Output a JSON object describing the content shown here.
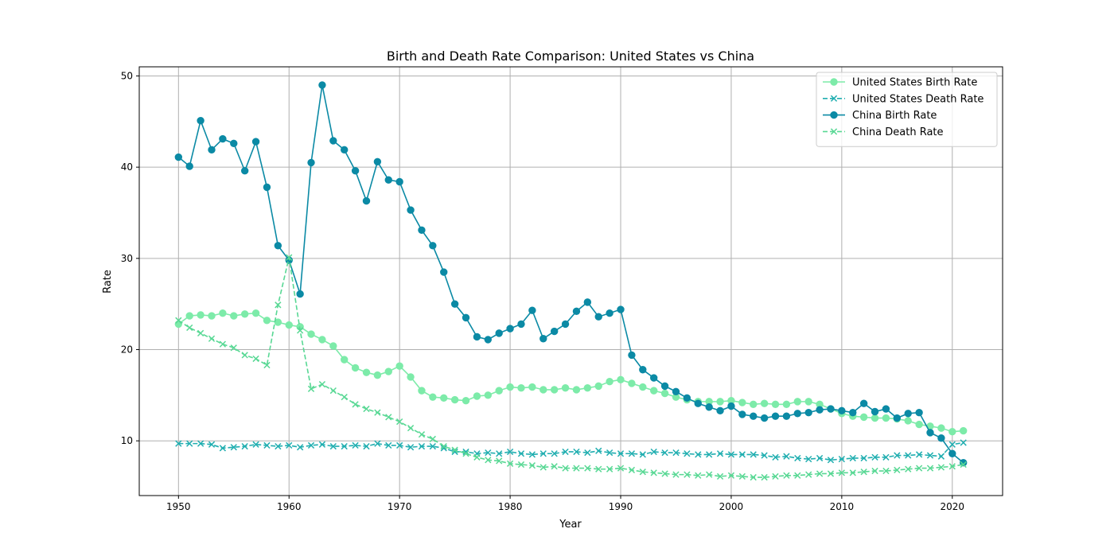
{
  "chart_data": {
    "type": "line",
    "title": "Birth and Death Rate Comparison: United States vs China",
    "xlabel": "Year",
    "ylabel": "Rate",
    "xlim": [
      1946.45,
      1824.55
    ],
    "ylim": [
      4.0,
      51.0
    ],
    "xticks": [
      1950,
      1960,
      1970,
      1980,
      1990,
      2000,
      2010,
      2020
    ],
    "yticks": [
      10,
      20,
      30,
      40,
      50
    ],
    "grid": true,
    "legend_position": "top-right",
    "x": [
      1950,
      1951,
      1952,
      1953,
      1954,
      1955,
      1956,
      1957,
      1958,
      1959,
      1960,
      1961,
      1962,
      1963,
      1964,
      1965,
      1966,
      1967,
      1968,
      1969,
      1970,
      1971,
      1972,
      1973,
      1974,
      1975,
      1976,
      1977,
      1978,
      1979,
      1980,
      1981,
      1982,
      1983,
      1984,
      1985,
      1986,
      1987,
      1988,
      1989,
      1990,
      1991,
      1992,
      1993,
      1994,
      1995,
      1996,
      1997,
      1998,
      1999,
      2000,
      2001,
      2002,
      2003,
      2004,
      2005,
      2006,
      2007,
      2008,
      2009,
      2010,
      2011,
      2012,
      2013,
      2014,
      2015,
      2016,
      2017,
      2018,
      2019,
      2020,
      2021
    ],
    "series": [
      {
        "name": "United States Birth Rate",
        "color": "#7deba9",
        "linestyle": "solid",
        "marker": "circle",
        "values": [
          22.8,
          23.7,
          23.8,
          23.7,
          24.0,
          23.7,
          23.9,
          24.0,
          23.2,
          23.0,
          22.7,
          22.5,
          21.7,
          21.1,
          20.4,
          18.9,
          18.0,
          17.5,
          17.2,
          17.6,
          18.2,
          17.0,
          15.5,
          14.8,
          14.7,
          14.5,
          14.4,
          14.9,
          15.0,
          15.5,
          15.9,
          15.8,
          15.9,
          15.6,
          15.6,
          15.8,
          15.6,
          15.8,
          16.0,
          16.5,
          16.7,
          16.3,
          15.9,
          15.5,
          15.2,
          14.8,
          14.5,
          14.3,
          14.3,
          14.3,
          14.4,
          14.2,
          14.0,
          14.1,
          14.0,
          14.0,
          14.3,
          14.3,
          14.0,
          13.5,
          13.0,
          12.7,
          12.6,
          12.5,
          12.5,
          12.4,
          12.2,
          11.8,
          11.6,
          11.4,
          11.0,
          11.1
        ]
      },
      {
        "name": "United States Death Rate",
        "color": "#20aeb0",
        "linestyle": "dashed",
        "marker": "x",
        "values": [
          9.7,
          9.7,
          9.7,
          9.6,
          9.2,
          9.3,
          9.4,
          9.6,
          9.5,
          9.4,
          9.5,
          9.3,
          9.5,
          9.6,
          9.4,
          9.4,
          9.5,
          9.4,
          9.7,
          9.5,
          9.5,
          9.3,
          9.4,
          9.4,
          9.2,
          8.8,
          8.8,
          8.6,
          8.7,
          8.6,
          8.8,
          8.6,
          8.5,
          8.6,
          8.6,
          8.8,
          8.8,
          8.7,
          8.9,
          8.7,
          8.6,
          8.6,
          8.5,
          8.8,
          8.7,
          8.7,
          8.6,
          8.5,
          8.5,
          8.6,
          8.5,
          8.5,
          8.5,
          8.4,
          8.2,
          8.3,
          8.1,
          8.0,
          8.1,
          7.9,
          8.0,
          8.1,
          8.1,
          8.2,
          8.2,
          8.4,
          8.4,
          8.5,
          8.4,
          8.3,
          9.6,
          9.8
        ]
      },
      {
        "name": "China Birth Rate",
        "color": "#0b8aa5",
        "linestyle": "solid",
        "marker": "circle",
        "values": [
          41.1,
          40.1,
          45.1,
          41.9,
          43.1,
          42.6,
          39.6,
          42.8,
          37.8,
          31.4,
          29.8,
          26.1,
          40.5,
          49.0,
          42.9,
          41.9,
          39.6,
          36.3,
          40.6,
          38.6,
          38.4,
          35.3,
          33.1,
          31.4,
          28.5,
          25.0,
          23.5,
          21.4,
          21.1,
          21.8,
          22.3,
          22.8,
          24.3,
          21.2,
          22.0,
          22.8,
          24.2,
          25.2,
          23.6,
          24.0,
          24.4,
          19.4,
          17.8,
          16.9,
          16.0,
          15.4,
          14.7,
          14.1,
          13.7,
          13.3,
          13.8,
          12.9,
          12.7,
          12.5,
          12.7,
          12.7,
          13.0,
          13.1,
          13.4,
          13.5,
          13.3,
          13.1,
          14.1,
          13.2,
          13.5,
          12.5,
          13.0,
          13.1,
          10.9,
          10.3,
          8.6,
          7.6
        ]
      },
      {
        "name": "China Death Rate",
        "color": "#58d894",
        "linestyle": "dashed",
        "marker": "x",
        "values": [
          23.2,
          22.4,
          21.8,
          21.2,
          20.6,
          20.2,
          19.4,
          19.0,
          18.3,
          24.9,
          30.1,
          22.1,
          15.7,
          16.2,
          15.5,
          14.8,
          14.0,
          13.5,
          13.1,
          12.6,
          12.1,
          11.4,
          10.7,
          10.2,
          9.4,
          9.0,
          8.6,
          8.2,
          7.9,
          7.8,
          7.5,
          7.4,
          7.3,
          7.1,
          7.2,
          7.0,
          7.0,
          7.0,
          6.9,
          6.9,
          7.0,
          6.8,
          6.6,
          6.5,
          6.4,
          6.3,
          6.3,
          6.2,
          6.3,
          6.1,
          6.2,
          6.1,
          6.0,
          6.0,
          6.1,
          6.2,
          6.2,
          6.3,
          6.4,
          6.4,
          6.5,
          6.5,
          6.6,
          6.7,
          6.7,
          6.8,
          6.9,
          7.0,
          7.0,
          7.1,
          7.2,
          7.4
        ]
      }
    ]
  }
}
